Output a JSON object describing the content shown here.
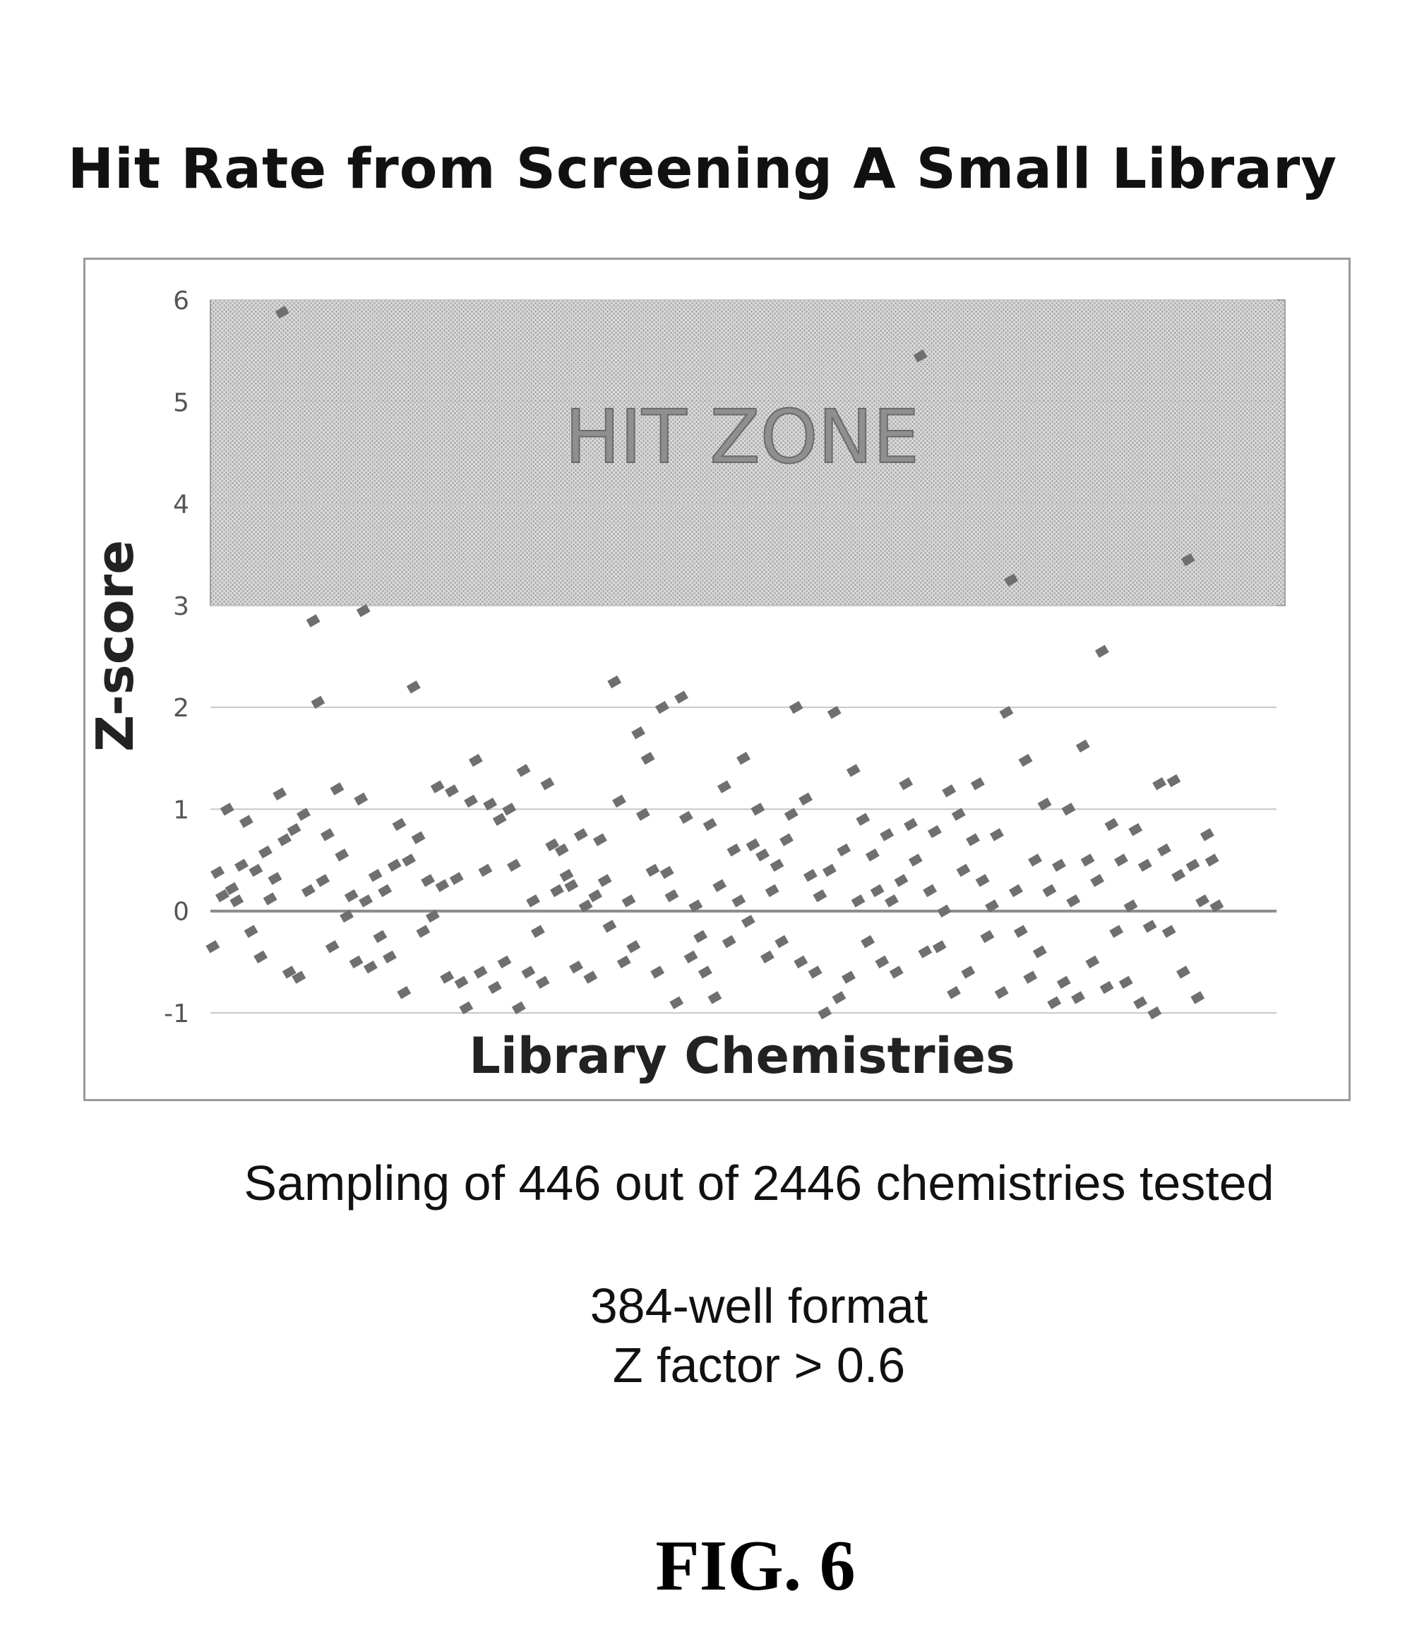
{
  "figure_label": "FIG. 6",
  "caption_main": "Sampling of 446 out of 2446 chemistries tested",
  "caption_lines": [
    "384-well format",
    "Z factor > 0.6"
  ],
  "zone_label": "HIT ZONE",
  "colors": {
    "points": "#6f6f6f",
    "zone": "#c2c2c2",
    "grid": "#c8c8c8",
    "frame": "#9a9a9a"
  },
  "chart_data": {
    "type": "scatter",
    "title": "Hit Rate from Screening A Small Library",
    "xlabel": "Library Chemistries",
    "ylabel": "Z-score",
    "ylim": [
      -1,
      6
    ],
    "yticks": [
      -1,
      0,
      1,
      2,
      3,
      4,
      5,
      6
    ],
    "xlim": [
      0,
      446
    ],
    "grid": true,
    "hit_zone": {
      "label": "HIT ZONE",
      "y_from": 3,
      "y_to": 6
    },
    "series": [
      {
        "points": [
          [
            1,
            -0.35
          ],
          [
            3,
            0.38
          ],
          [
            5,
            0.15
          ],
          [
            7,
            1.0
          ],
          [
            9,
            0.22
          ],
          [
            11,
            0.1
          ],
          [
            13,
            0.45
          ],
          [
            15,
            0.88
          ],
          [
            17,
            -0.2
          ],
          [
            19,
            0.4
          ],
          [
            21,
            -0.45
          ],
          [
            23,
            0.58
          ],
          [
            25,
            0.12
          ],
          [
            27,
            0.32
          ],
          [
            29,
            1.15
          ],
          [
            30,
            5.88
          ],
          [
            31,
            0.7
          ],
          [
            33,
            -0.6
          ],
          [
            35,
            0.8
          ],
          [
            37,
            -0.65
          ],
          [
            39,
            0.95
          ],
          [
            41,
            0.2
          ],
          [
            43,
            2.85
          ],
          [
            45,
            2.05
          ],
          [
            47,
            0.3
          ],
          [
            49,
            0.75
          ],
          [
            51,
            -0.35
          ],
          [
            53,
            1.2
          ],
          [
            55,
            0.55
          ],
          [
            57,
            -0.05
          ],
          [
            59,
            0.15
          ],
          [
            61,
            -0.5
          ],
          [
            63,
            1.1
          ],
          [
            64,
            2.95
          ],
          [
            65,
            0.1
          ],
          [
            67,
            -0.55
          ],
          [
            69,
            0.35
          ],
          [
            71,
            -0.25
          ],
          [
            73,
            0.2
          ],
          [
            75,
            -0.45
          ],
          [
            77,
            0.45
          ],
          [
            79,
            0.85
          ],
          [
            81,
            -0.8
          ],
          [
            83,
            0.5
          ],
          [
            85,
            2.2
          ],
          [
            87,
            0.72
          ],
          [
            89,
            -0.2
          ],
          [
            91,
            0.3
          ],
          [
            93,
            -0.05
          ],
          [
            95,
            1.22
          ],
          [
            97,
            0.25
          ],
          [
            99,
            -0.65
          ],
          [
            101,
            1.18
          ],
          [
            103,
            0.32
          ],
          [
            105,
            -0.7
          ],
          [
            107,
            -0.95
          ],
          [
            109,
            1.08
          ],
          [
            111,
            1.48
          ],
          [
            113,
            -0.6
          ],
          [
            115,
            0.4
          ],
          [
            117,
            1.05
          ],
          [
            119,
            -0.75
          ],
          [
            121,
            0.9
          ],
          [
            123,
            -0.5
          ],
          [
            125,
            1.0
          ],
          [
            127,
            0.45
          ],
          [
            129,
            -0.95
          ],
          [
            131,
            1.38
          ],
          [
            133,
            -0.6
          ],
          [
            135,
            0.1
          ],
          [
            137,
            -0.2
          ],
          [
            139,
            -0.7
          ],
          [
            141,
            1.25
          ],
          [
            143,
            0.65
          ],
          [
            145,
            0.2
          ],
          [
            147,
            0.6
          ],
          [
            149,
            0.35
          ],
          [
            151,
            0.25
          ],
          [
            153,
            -0.55
          ],
          [
            155,
            0.75
          ],
          [
            157,
            0.05
          ],
          [
            159,
            -0.65
          ],
          [
            161,
            0.15
          ],
          [
            163,
            0.7
          ],
          [
            165,
            0.3
          ],
          [
            167,
            -0.15
          ],
          [
            169,
            2.25
          ],
          [
            171,
            1.08
          ],
          [
            173,
            -0.5
          ],
          [
            175,
            0.1
          ],
          [
            177,
            -0.35
          ],
          [
            179,
            1.75
          ],
          [
            181,
            0.95
          ],
          [
            183,
            1.5
          ],
          [
            185,
            0.4
          ],
          [
            187,
            -0.6
          ],
          [
            189,
            2.0
          ],
          [
            191,
            0.38
          ],
          [
            193,
            0.15
          ],
          [
            195,
            -0.9
          ],
          [
            197,
            2.1
          ],
          [
            199,
            0.92
          ],
          [
            201,
            -0.45
          ],
          [
            203,
            0.05
          ],
          [
            205,
            -0.25
          ],
          [
            207,
            -0.6
          ],
          [
            209,
            0.85
          ],
          [
            211,
            -0.85
          ],
          [
            213,
            0.25
          ],
          [
            215,
            1.22
          ],
          [
            217,
            -0.3
          ],
          [
            219,
            0.6
          ],
          [
            221,
            0.1
          ],
          [
            223,
            1.5
          ],
          [
            225,
            -0.1
          ],
          [
            227,
            0.65
          ],
          [
            229,
            1.0
          ],
          [
            231,
            0.55
          ],
          [
            233,
            -0.45
          ],
          [
            235,
            0.2
          ],
          [
            237,
            0.45
          ],
          [
            239,
            -0.3
          ],
          [
            241,
            0.7
          ],
          [
            243,
            0.95
          ],
          [
            245,
            2.0
          ],
          [
            247,
            -0.5
          ],
          [
            249,
            1.1
          ],
          [
            251,
            0.35
          ],
          [
            253,
            -0.6
          ],
          [
            255,
            0.15
          ],
          [
            257,
            -1.0
          ],
          [
            259,
            0.4
          ],
          [
            261,
            1.95
          ],
          [
            263,
            -0.85
          ],
          [
            265,
            0.6
          ],
          [
            267,
            -0.65
          ],
          [
            269,
            1.38
          ],
          [
            271,
            0.1
          ],
          [
            273,
            0.9
          ],
          [
            275,
            -0.3
          ],
          [
            277,
            0.55
          ],
          [
            279,
            0.2
          ],
          [
            281,
            -0.5
          ],
          [
            283,
            0.75
          ],
          [
            285,
            0.1
          ],
          [
            287,
            -0.6
          ],
          [
            289,
            0.3
          ],
          [
            291,
            1.25
          ],
          [
            293,
            0.85
          ],
          [
            295,
            0.5
          ],
          [
            297,
            5.45
          ],
          [
            299,
            -0.4
          ],
          [
            301,
            0.2
          ],
          [
            303,
            0.78
          ],
          [
            305,
            -0.35
          ],
          [
            307,
            0.0
          ],
          [
            309,
            1.18
          ],
          [
            311,
            -0.8
          ],
          [
            313,
            0.95
          ],
          [
            315,
            0.4
          ],
          [
            317,
            -0.6
          ],
          [
            319,
            0.7
          ],
          [
            321,
            1.25
          ],
          [
            323,
            0.3
          ],
          [
            325,
            -0.25
          ],
          [
            327,
            0.05
          ],
          [
            329,
            0.75
          ],
          [
            331,
            -0.8
          ],
          [
            333,
            1.95
          ],
          [
            335,
            3.25
          ],
          [
            337,
            0.2
          ],
          [
            339,
            -0.2
          ],
          [
            341,
            1.48
          ],
          [
            343,
            -0.65
          ],
          [
            345,
            0.5
          ],
          [
            347,
            -0.4
          ],
          [
            349,
            1.05
          ],
          [
            351,
            0.2
          ],
          [
            353,
            -0.9
          ],
          [
            355,
            0.45
          ],
          [
            357,
            -0.7
          ],
          [
            359,
            1.0
          ],
          [
            361,
            0.1
          ],
          [
            363,
            -0.85
          ],
          [
            365,
            1.62
          ],
          [
            367,
            0.5
          ],
          [
            369,
            -0.5
          ],
          [
            371,
            0.3
          ],
          [
            373,
            2.55
          ],
          [
            375,
            -0.75
          ],
          [
            377,
            0.85
          ],
          [
            379,
            -0.2
          ],
          [
            381,
            0.5
          ],
          [
            383,
            -0.7
          ],
          [
            385,
            0.05
          ],
          [
            387,
            0.8
          ],
          [
            389,
            -0.9
          ],
          [
            391,
            0.45
          ],
          [
            393,
            -0.15
          ],
          [
            395,
            -1.0
          ],
          [
            397,
            1.25
          ],
          [
            399,
            0.6
          ],
          [
            401,
            -0.2
          ],
          [
            403,
            1.28
          ],
          [
            405,
            0.35
          ],
          [
            407,
            -0.6
          ],
          [
            409,
            3.45
          ],
          [
            411,
            0.45
          ],
          [
            413,
            -0.85
          ],
          [
            415,
            0.1
          ],
          [
            417,
            0.75
          ],
          [
            419,
            0.5
          ],
          [
            421,
            0.05
          ]
        ]
      }
    ]
  }
}
